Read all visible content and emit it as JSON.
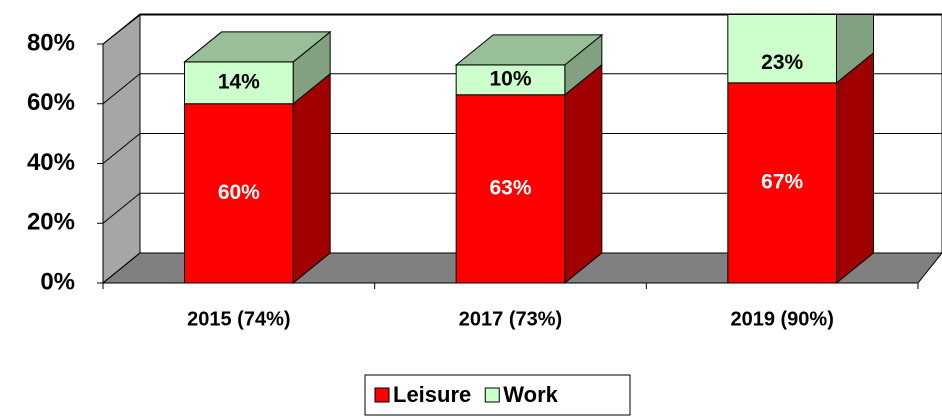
{
  "chart_data": {
    "type": "bar3d_stacked",
    "categories": [
      "2015 (74%)",
      "2017 (73%)",
      "2019 (90%)"
    ],
    "series": [
      {
        "name": "Leisure",
        "color": "#ff0000",
        "values": [
          60,
          63,
          67
        ],
        "value_labels": [
          "60%",
          "63%",
          "67%"
        ]
      },
      {
        "name": "Work",
        "color": "#ccffcc",
        "values": [
          14,
          10,
          23
        ],
        "value_labels": [
          "14%",
          "10%",
          "23%"
        ]
      }
    ],
    "ylim": [
      0,
      80
    ],
    "yticks": [
      {
        "value": 0,
        "label": "0%"
      },
      {
        "value": 20,
        "label": "20%"
      },
      {
        "value": 40,
        "label": "40%"
      },
      {
        "value": 60,
        "label": "60%"
      },
      {
        "value": 80,
        "label": "80%"
      }
    ],
    "grid": true,
    "legend": "bottom"
  }
}
